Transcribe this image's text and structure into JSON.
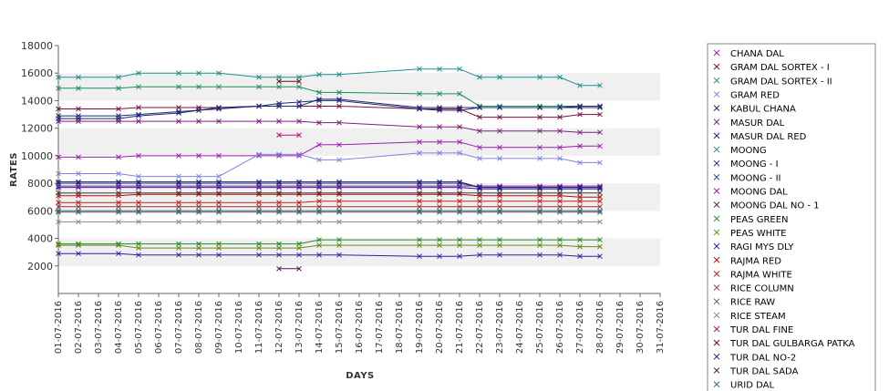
{
  "chart_data": {
    "type": "line",
    "title": "",
    "xlabel": "DAYS",
    "ylabel": "RATES",
    "ylim": [
      0,
      18000
    ],
    "yticks": [
      2000,
      4000,
      6000,
      8000,
      10000,
      12000,
      14000,
      16000,
      18000
    ],
    "grid": "alternating horizontal bands",
    "legend_placement": "right",
    "categories": [
      "01-07-2016",
      "02-07-2016",
      "03-07-2016",
      "04-07-2016",
      "05-07-2016",
      "06-07-2016",
      "07-07-2016",
      "08-07-2016",
      "09-07-2016",
      "10-07-2016",
      "11-07-2016",
      "12-07-2016",
      "13-07-2016",
      "14-07-2016",
      "15-07-2016",
      "16-07-2016",
      "17-07-2016",
      "18-07-2016",
      "19-07-2016",
      "20-07-2016",
      "21-07-2016",
      "22-07-2016",
      "23-07-2016",
      "24-07-2016",
      "25-07-2016",
      "26-07-2016",
      "27-07-2016",
      "28-07-2016",
      "29-07-2016",
      "30-07-2016",
      "31-07-2016"
    ],
    "series": [
      {
        "name": "CHANA DAL",
        "color": "#9b1fae",
        "values": [
          9900,
          9900,
          null,
          9900,
          10000,
          null,
          10000,
          10000,
          10000,
          null,
          10000,
          10000,
          10000,
          10800,
          10800,
          null,
          null,
          null,
          11000,
          11000,
          11000,
          10600,
          10600,
          null,
          10600,
          10600,
          10700,
          10700,
          null,
          null,
          null
        ]
      },
      {
        "name": "GRAM DAL SORTEX  - I",
        "color": "#7a0f3f",
        "values": [
          13400,
          13400,
          null,
          13400,
          13500,
          null,
          13500,
          13500,
          13500,
          null,
          13600,
          13600,
          13600,
          13600,
          13600,
          null,
          null,
          null,
          13400,
          13400,
          13400,
          12800,
          12800,
          null,
          12800,
          12800,
          13000,
          13000,
          null,
          null,
          null
        ]
      },
      {
        "name": "GRAM DAL SORTEX  - II",
        "color": "#1a8f5a",
        "values": [
          14900,
          14900,
          null,
          14900,
          15000,
          null,
          15000,
          15000,
          15000,
          null,
          15000,
          15000,
          15000,
          14600,
          14600,
          null,
          null,
          null,
          14500,
          14500,
          14500,
          13600,
          13600,
          null,
          13600,
          13600,
          13600,
          13600,
          null,
          null,
          null
        ]
      },
      {
        "name": "GRAM RED",
        "color": "#8080e0",
        "values": [
          8700,
          8700,
          null,
          8700,
          8500,
          null,
          8500,
          8500,
          8500,
          null,
          10100,
          10100,
          10100,
          9700,
          9700,
          null,
          null,
          null,
          10200,
          10200,
          10200,
          9800,
          9800,
          null,
          9800,
          9800,
          9500,
          9500,
          null,
          null,
          null
        ]
      },
      {
        "name": "KABUL CHANA",
        "color": "#1b2a6b",
        "values": [
          12900,
          12900,
          null,
          12900,
          13000,
          null,
          13200,
          13300,
          13400,
          null,
          13600,
          13800,
          13900,
          14000,
          14000,
          null,
          null,
          null,
          13400,
          13300,
          13300,
          13500,
          13500,
          null,
          13500,
          13500,
          13600,
          13600,
          null,
          null,
          null
        ]
      },
      {
        "name": "MASUR DAL",
        "color": "#7a2080",
        "values": [
          12500,
          12500,
          null,
          12500,
          12500,
          null,
          12500,
          12500,
          12500,
          null,
          12500,
          12500,
          12500,
          12400,
          12400,
          null,
          null,
          null,
          12100,
          12100,
          12100,
          11800,
          11800,
          null,
          11800,
          11800,
          11700,
          11700,
          null,
          null,
          null
        ]
      },
      {
        "name": "MASUR DAL RED",
        "color": "#1f1fa0",
        "values": [
          7700,
          7700,
          null,
          7700,
          7700,
          null,
          7700,
          7700,
          7700,
          null,
          7700,
          7700,
          7700,
          7700,
          7700,
          null,
          null,
          null,
          7700,
          7700,
          7700,
          7600,
          7600,
          null,
          7600,
          7600,
          7600,
          7600,
          null,
          null,
          null
        ]
      },
      {
        "name": "MOONG",
        "color": "#1a8f8f",
        "values": [
          15700,
          15700,
          null,
          15700,
          16000,
          null,
          16000,
          16000,
          16000,
          null,
          15700,
          15700,
          15700,
          15900,
          15900,
          null,
          null,
          null,
          16300,
          16300,
          16300,
          15700,
          15700,
          null,
          15700,
          15700,
          15100,
          15100,
          null,
          null,
          null
        ]
      },
      {
        "name": "MOONG - I",
        "color": "#24247a",
        "values": [
          12700,
          12700,
          null,
          12700,
          12900,
          null,
          13100,
          13300,
          13500,
          null,
          13600,
          13600,
          13600,
          14100,
          14100,
          null,
          null,
          null,
          13500,
          13500,
          13500,
          13500,
          13500,
          null,
          13500,
          13500,
          13500,
          13500,
          null,
          null,
          null
        ]
      },
      {
        "name": "MOONG - II",
        "color": "#2a4a8a",
        "values": [
          8000,
          8000,
          null,
          8000,
          8000,
          null,
          8000,
          8000,
          8000,
          null,
          8000,
          8000,
          8000,
          8000,
          8000,
          null,
          null,
          null,
          8000,
          8000,
          8000,
          7700,
          7700,
          null,
          7700,
          7700,
          7700,
          7700,
          null,
          null,
          null
        ]
      },
      {
        "name": "MOONG DAL",
        "color": "#a01fa0",
        "values": [
          7800,
          7800,
          null,
          7800,
          7800,
          null,
          7800,
          7800,
          7800,
          null,
          7800,
          7800,
          7800,
          7800,
          7800,
          null,
          null,
          null,
          7800,
          7800,
          7800,
          7800,
          7800,
          null,
          7800,
          7800,
          7800,
          7800,
          null,
          null,
          null
        ]
      },
      {
        "name": "MOONG DAL NO - 1",
        "color": "#3b3b3b",
        "values": [
          7300,
          7300,
          null,
          7300,
          7300,
          null,
          7300,
          7300,
          7300,
          null,
          7300,
          7300,
          7300,
          7300,
          7300,
          null,
          null,
          null,
          7300,
          7300,
          7300,
          7300,
          7300,
          null,
          7300,
          7300,
          7300,
          7300,
          null,
          null,
          null
        ]
      },
      {
        "name": "PEAS GREEN",
        "color": "#1f8a1f",
        "values": [
          3600,
          3600,
          null,
          3600,
          3600,
          null,
          3600,
          3600,
          3600,
          null,
          3600,
          3600,
          3600,
          3900,
          3900,
          null,
          null,
          null,
          3900,
          3900,
          3900,
          3900,
          3900,
          null,
          3900,
          3900,
          3900,
          3900,
          null,
          null,
          null
        ]
      },
      {
        "name": "PEAS WHITE",
        "color": "#6a8a1a",
        "values": [
          3500,
          3500,
          null,
          3500,
          3300,
          null,
          3300,
          3300,
          3300,
          null,
          3300,
          3300,
          3300,
          3500,
          3500,
          null,
          null,
          null,
          3500,
          3500,
          3500,
          3500,
          3500,
          null,
          3500,
          3500,
          3400,
          3400,
          null,
          null,
          null
        ]
      },
      {
        "name": "RAGI MYS DLY",
        "color": "#3a1aa0",
        "values": [
          2900,
          2900,
          null,
          2900,
          2800,
          null,
          2800,
          2800,
          2800,
          null,
          2800,
          2800,
          2800,
          2800,
          2800,
          null,
          null,
          null,
          2700,
          2700,
          2700,
          2800,
          2800,
          null,
          2800,
          2800,
          2700,
          2700,
          null,
          null,
          null
        ]
      },
      {
        "name": "RAJMA RED",
        "color": "#b01010",
        "values": [
          7100,
          7100,
          null,
          7100,
          7200,
          null,
          7200,
          7200,
          7200,
          null,
          7200,
          7200,
          7200,
          7200,
          7200,
          null,
          null,
          null,
          7200,
          7200,
          7200,
          7100,
          7100,
          null,
          7100,
          7100,
          7000,
          7000,
          null,
          null,
          null
        ]
      },
      {
        "name": "RAJMA WHITE",
        "color": "#c02020",
        "values": [
          6600,
          6600,
          null,
          6600,
          6600,
          null,
          6600,
          6600,
          6600,
          null,
          6600,
          6600,
          6600,
          6700,
          6700,
          null,
          null,
          null,
          6700,
          6700,
          6700,
          6700,
          6700,
          null,
          6700,
          6700,
          6700,
          6700,
          null,
          null,
          null
        ]
      },
      {
        "name": "RICE COLUMN",
        "color": "#a03030",
        "values": [
          6300,
          6300,
          null,
          6300,
          6300,
          null,
          6300,
          6300,
          6300,
          null,
          6300,
          6300,
          6300,
          6300,
          6300,
          null,
          null,
          null,
          6300,
          6300,
          6300,
          6300,
          6300,
          null,
          6300,
          6300,
          6300,
          6300,
          null,
          null,
          null
        ]
      },
      {
        "name": "RICE RAW",
        "color": "#5a5a5a",
        "values": [
          5900,
          5900,
          null,
          5900,
          5900,
          null,
          5900,
          5900,
          5900,
          null,
          5900,
          5900,
          5900,
          5900,
          5900,
          null,
          null,
          null,
          5900,
          5900,
          5900,
          5900,
          5900,
          null,
          5900,
          5900,
          5900,
          5900,
          null,
          null,
          null
        ]
      },
      {
        "name": "RICE STEAM",
        "color": "#888888",
        "values": [
          5200,
          5200,
          null,
          5200,
          5200,
          null,
          5200,
          5200,
          5200,
          null,
          5200,
          5200,
          5200,
          5200,
          5200,
          null,
          null,
          null,
          5200,
          5200,
          5200,
          5200,
          5200,
          null,
          5200,
          5200,
          5200,
          5200,
          null,
          null,
          null
        ]
      },
      {
        "name": "TUR DAL FINE",
        "color": "#c0106a",
        "values": [
          null,
          null,
          null,
          null,
          null,
          null,
          null,
          null,
          null,
          null,
          null,
          11500,
          11500,
          null,
          null,
          null,
          null,
          null,
          null,
          null,
          null,
          null,
          null,
          null,
          null,
          null,
          null,
          null,
          null,
          null,
          null
        ]
      },
      {
        "name": "TUR DAL GULBARGA PATKA",
        "color": "#6a1010",
        "values": [
          null,
          null,
          null,
          null,
          null,
          null,
          null,
          null,
          null,
          null,
          null,
          15400,
          15400,
          null,
          null,
          null,
          null,
          null,
          null,
          null,
          null,
          null,
          null,
          null,
          null,
          null,
          null,
          null,
          null,
          null,
          null
        ]
      },
      {
        "name": "TUR DAL NO-2",
        "color": "#101a6a",
        "values": [
          8100,
          8100,
          null,
          8100,
          8100,
          null,
          8100,
          8100,
          8100,
          null,
          8100,
          8100,
          8100,
          8100,
          8100,
          null,
          null,
          null,
          8100,
          8100,
          8100,
          7700,
          7700,
          null,
          7700,
          7700,
          7700,
          7700,
          null,
          null,
          null
        ]
      },
      {
        "name": "TUR DAL SADA",
        "color": "#4a0a4a",
        "values": [
          null,
          null,
          null,
          null,
          null,
          null,
          null,
          null,
          null,
          null,
          null,
          1800,
          1800,
          null,
          null,
          null,
          null,
          null,
          null,
          null,
          null,
          null,
          null,
          null,
          null,
          null,
          null,
          null,
          null,
          null,
          null
        ]
      },
      {
        "name": "URID DAL",
        "color": "#2a6a8a",
        "values": [
          6000,
          6000,
          null,
          6000,
          6000,
          null,
          6000,
          6000,
          6000,
          null,
          6000,
          6000,
          6000,
          6000,
          6000,
          null,
          null,
          null,
          6000,
          6000,
          6000,
          6000,
          6000,
          null,
          6000,
          6000,
          6000,
          6000,
          null,
          null,
          null
        ]
      }
    ]
  }
}
